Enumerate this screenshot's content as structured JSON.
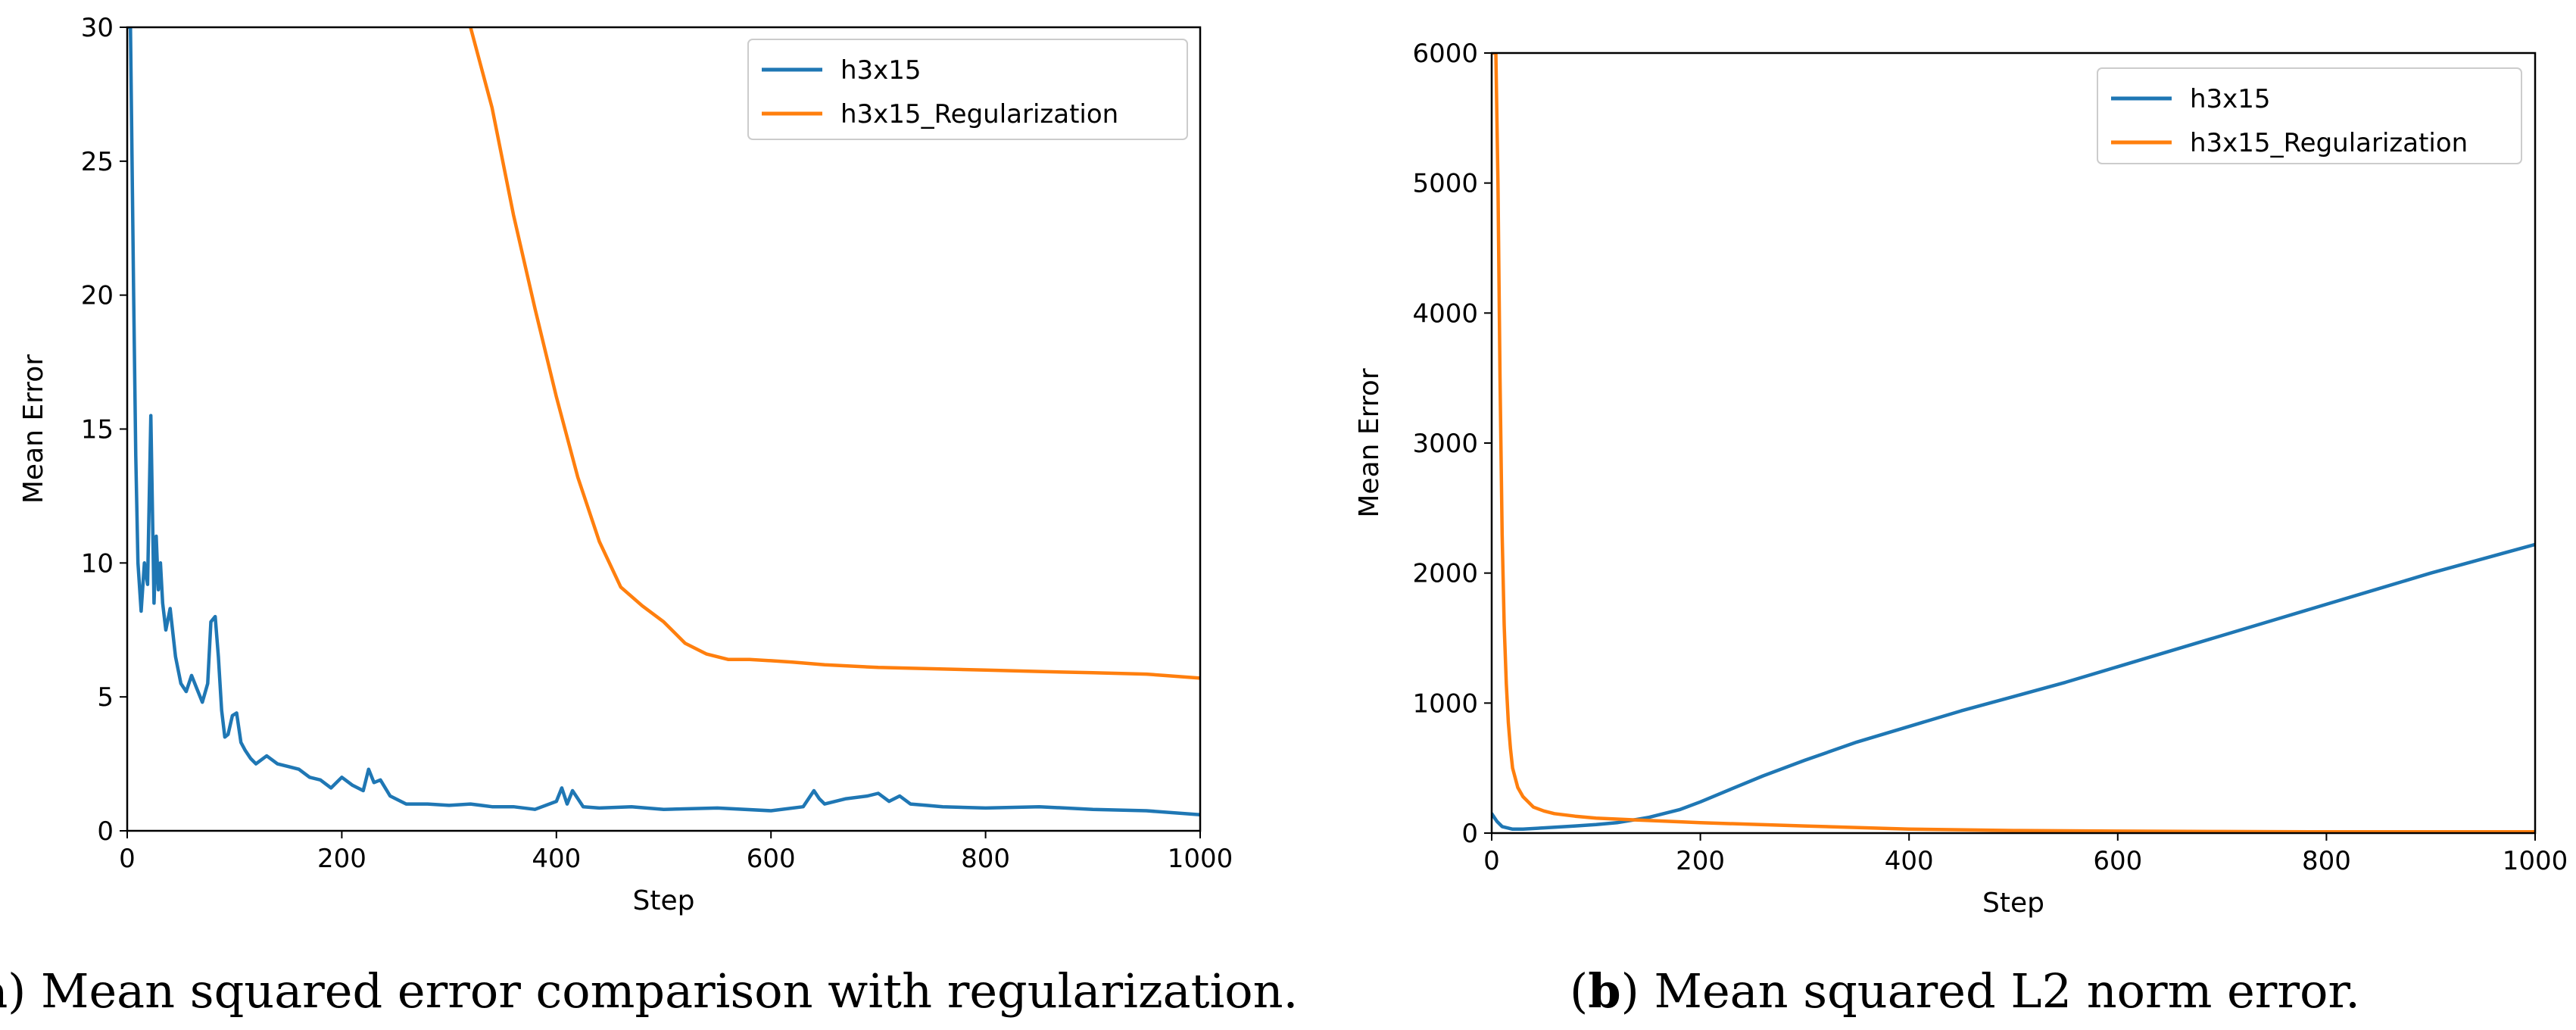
{
  "chart_data": [
    {
      "type": "line",
      "title": "",
      "xlabel": "Step",
      "ylabel": "Mean Error",
      "xlim": [
        0,
        1000
      ],
      "ylim": [
        0,
        30
      ],
      "xticks": [
        "0",
        "200",
        "400",
        "600",
        "800",
        "1000"
      ],
      "yticks": [
        "0",
        "5",
        "10",
        "15",
        "20",
        "25",
        "30"
      ],
      "legend_position": "top-right",
      "caption_letter": "a",
      "caption_text": ") Mean squared error comparison with regularization.",
      "series": [
        {
          "name": "h3x15",
          "color": "#1f77b4",
          "x": [
            0,
            3,
            6,
            8,
            10,
            13,
            16,
            19,
            22,
            25,
            27,
            29,
            31,
            33,
            36,
            40,
            45,
            50,
            55,
            60,
            65,
            70,
            75,
            78,
            82,
            85,
            88,
            91,
            94,
            98,
            102,
            106,
            110,
            115,
            120,
            130,
            140,
            150,
            160,
            170,
            180,
            190,
            200,
            210,
            220,
            225,
            230,
            236,
            245,
            260,
            280,
            300,
            320,
            340,
            360,
            380,
            400,
            405,
            410,
            415,
            425,
            440,
            470,
            500,
            550,
            600,
            630,
            640,
            645,
            650,
            670,
            690,
            700,
            710,
            720,
            730,
            745,
            760,
            800,
            850,
            900,
            950,
            1000
          ],
          "values": [
            50,
            30,
            20,
            14,
            10,
            8.2,
            10,
            9.2,
            15.5,
            8.5,
            11,
            9,
            10,
            8.5,
            7.5,
            8.3,
            6.5,
            5.5,
            5.2,
            5.8,
            5.3,
            4.8,
            5.5,
            7.8,
            8.0,
            6.5,
            4.5,
            3.5,
            3.6,
            4.3,
            4.4,
            3.3,
            3.0,
            2.7,
            2.5,
            2.8,
            2.5,
            2.4,
            2.3,
            2.0,
            1.9,
            1.6,
            2.0,
            1.7,
            1.5,
            2.3,
            1.8,
            1.9,
            1.3,
            1.0,
            1.0,
            0.95,
            1.0,
            0.9,
            0.9,
            0.8,
            1.1,
            1.6,
            1.0,
            1.5,
            0.9,
            0.85,
            0.9,
            0.8,
            0.85,
            0.75,
            0.9,
            1.5,
            1.2,
            1.0,
            1.2,
            1.3,
            1.4,
            1.1,
            1.3,
            1.0,
            0.95,
            0.9,
            0.85,
            0.9,
            0.8,
            0.75,
            0.6
          ]
        },
        {
          "name": "h3x15_Regularization",
          "color": "#ff7f0e",
          "x": [
            320,
            340,
            360,
            380,
            400,
            420,
            440,
            460,
            480,
            500,
            520,
            540,
            560,
            580,
            600,
            620,
            650,
            700,
            750,
            800,
            850,
            900,
            950,
            1000
          ],
          "values": [
            30,
            27,
            23,
            19.5,
            16.2,
            13.2,
            10.8,
            9.1,
            8.4,
            7.8,
            7.0,
            6.6,
            6.4,
            6.4,
            6.35,
            6.3,
            6.2,
            6.1,
            6.05,
            6.0,
            5.95,
            5.9,
            5.85,
            5.7
          ]
        }
      ]
    },
    {
      "type": "line",
      "title": "",
      "xlabel": "Step",
      "ylabel": "Mean Error",
      "xlim": [
        0,
        1000
      ],
      "ylim": [
        0,
        6000
      ],
      "xticks": [
        "0",
        "200",
        "400",
        "600",
        "800",
        "1000"
      ],
      "yticks": [
        "0",
        "1000",
        "2000",
        "3000",
        "4000",
        "5000",
        "6000"
      ],
      "legend_position": "top-right",
      "caption_letter": "b",
      "caption_text": ") Mean squared L2 norm error.",
      "series": [
        {
          "name": "h3x15",
          "color": "#1f77b4",
          "x": [
            0,
            5,
            10,
            20,
            30,
            50,
            80,
            100,
            120,
            150,
            180,
            200,
            230,
            260,
            300,
            350,
            400,
            450,
            500,
            550,
            600,
            650,
            700,
            750,
            800,
            850,
            900,
            950,
            1000
          ],
          "values": [
            150,
            90,
            50,
            30,
            30,
            40,
            55,
            65,
            80,
            120,
            180,
            240,
            340,
            440,
            560,
            700,
            820,
            940,
            1050,
            1160,
            1280,
            1400,
            1520,
            1640,
            1760,
            1880,
            2000,
            2110,
            2220
          ]
        },
        {
          "name": "h3x15_Regularization",
          "color": "#ff7f0e",
          "x": [
            0,
            2,
            4,
            6,
            8,
            10,
            12,
            14,
            16,
            18,
            20,
            25,
            30,
            40,
            50,
            60,
            80,
            100,
            140,
            200,
            300,
            400,
            500,
            600,
            700,
            800,
            900,
            1000
          ],
          "values": [
            6000,
            6000,
            6000,
            5000,
            3500,
            2300,
            1600,
            1150,
            850,
            650,
            500,
            350,
            280,
            200,
            170,
            150,
            130,
            115,
            100,
            80,
            55,
            30,
            20,
            15,
            12,
            10,
            10,
            10
          ]
        }
      ]
    }
  ]
}
